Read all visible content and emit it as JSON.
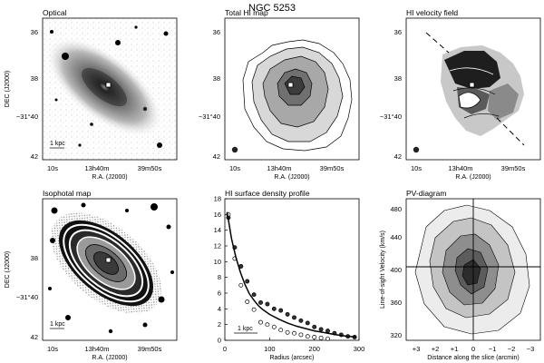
{
  "figure": {
    "title": "NGC 5253"
  },
  "panels": {
    "optical": {
      "title": "Optical",
      "ylabel": "DEC (J2000)",
      "xlabel": "R.A. (J2000)",
      "yticks": [
        "36",
        "38",
        "−31°40",
        "42"
      ],
      "xticks": [
        "10ˢ",
        "13ˢ40ᵐ",
        "39ᵐ 50ˢ"
      ],
      "xticks_display": [
        "10s",
        "13h40m",
        "39m50s"
      ],
      "scalebar": "1 kpc"
    },
    "total_hi": {
      "title": "Total HI map",
      "yticks": [
        "36",
        "38",
        "−31°40",
        "42"
      ],
      "xticks_display": [
        "10s",
        "13h40m",
        "39m50s"
      ],
      "xlabel": "R.A. (J2000)"
    },
    "velocity": {
      "title": "HI velocity field",
      "yticks": [
        "36",
        "38",
        "−31°40",
        "42"
      ],
      "xticks_display": [
        "10s",
        "13h40m",
        "39m50s"
      ],
      "xlabel": "R.A. (J2000)"
    },
    "isophotal": {
      "title": "Isophotal map",
      "ylabel": "DEC (J2000)",
      "xlabel": "R.A. (J2000)",
      "yticks": [
        "38",
        "−31°40",
        "42"
      ],
      "xticks_display": [
        "10s",
        "13h40m",
        "39m50s"
      ],
      "scalebar": "1 kpc"
    },
    "pv": {
      "title": "PV-diagram",
      "ylabel": "Line-of-sight Velocity (km/s)",
      "xlabel": "Distance along the slice (arcmin)",
      "yticks": [
        "320",
        "360",
        "400",
        "440",
        "480"
      ],
      "xticks": [
        "+3",
        "+2",
        "+1",
        "0",
        "−1",
        "−2",
        "−3"
      ]
    }
  },
  "chart_data": {
    "type": "scatter",
    "title": "HI surface density profile",
    "xlabel": "Radius (arcsec)",
    "ylabel": "",
    "xlim": [
      0,
      300
    ],
    "ylim": [
      0,
      18
    ],
    "xticks": [
      0,
      100,
      200,
      300
    ],
    "yticks": [
      0,
      2,
      4,
      6,
      8,
      10,
      12,
      14,
      16,
      18
    ],
    "scalebar": "1 kpc",
    "series": [
      {
        "name": "filled",
        "marker": "filled-circle",
        "x": [
          8,
          22,
          36,
          50,
          65,
          80,
          95,
          110,
          125,
          140,
          155,
          170,
          185,
          200,
          215,
          230,
          245,
          260,
          275,
          290
        ],
        "y": [
          15.6,
          11.8,
          9.4,
          7.5,
          5.8,
          4.8,
          4.6,
          4.0,
          3.8,
          3.3,
          2.9,
          2.5,
          2.2,
          1.7,
          1.4,
          1.2,
          0.9,
          0.7,
          0.5,
          0.4
        ]
      },
      {
        "name": "open",
        "marker": "open-circle",
        "x": [
          8,
          22,
          36,
          50,
          65,
          80,
          95,
          110,
          125,
          140,
          155,
          170,
          185,
          200,
          215,
          230
        ],
        "y": [
          16.0,
          10.4,
          7.0,
          4.9,
          3.9,
          2.3,
          2.0,
          1.7,
          1.3,
          1.0,
          0.9,
          0.7,
          0.5,
          0.4,
          0.3,
          0.2
        ]
      },
      {
        "name": "fit",
        "marker": "line",
        "x": [
          5,
          15,
          25,
          35,
          45,
          55,
          65,
          75,
          85,
          100,
          120,
          140,
          160,
          180,
          200,
          220,
          240,
          260,
          280,
          295
        ],
        "y": [
          16.3,
          12.9,
          10.5,
          8.6,
          7.1,
          5.9,
          5.1,
          4.4,
          3.9,
          3.3,
          2.7,
          2.2,
          1.8,
          1.5,
          1.2,
          1.0,
          0.8,
          0.6,
          0.5,
          0.4
        ]
      }
    ]
  }
}
